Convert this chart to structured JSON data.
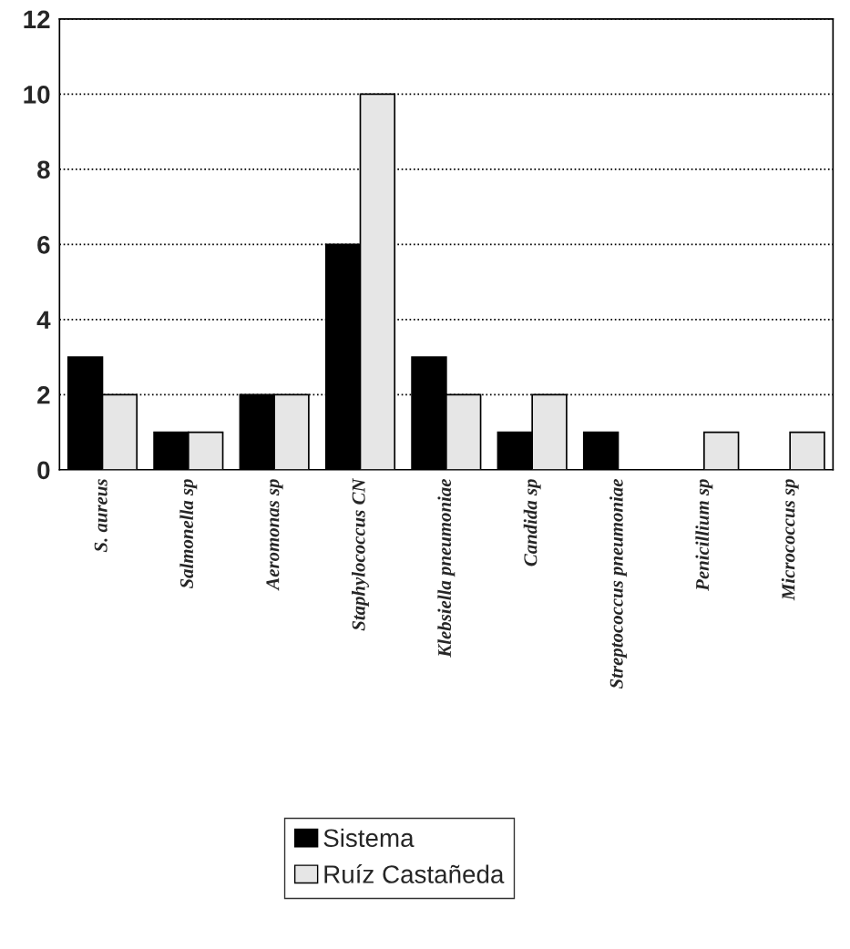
{
  "chart_data": {
    "type": "bar",
    "categories": [
      "S. aureus",
      "Salmonella sp",
      "Aeromonas sp",
      "Staphylococcus CN",
      "Klebsiella pneumoniae",
      "Candida sp",
      "Streptococcus pneumoniae",
      "Penicillium sp",
      "Micrococcus sp"
    ],
    "series": [
      {
        "name": "Sistema",
        "color": "#000000",
        "values": [
          3,
          1,
          2,
          6,
          3,
          1,
          1,
          0,
          0
        ]
      },
      {
        "name": "Ruíz Castañeda",
        "color": "#e6e6e6",
        "values": [
          2,
          1,
          2,
          10,
          2,
          2,
          0,
          1,
          1
        ]
      }
    ],
    "ylim": [
      0,
      12
    ],
    "yticks": [
      0,
      2,
      4,
      6,
      8,
      10,
      12
    ],
    "grid": "y",
    "legend": "bottom"
  }
}
